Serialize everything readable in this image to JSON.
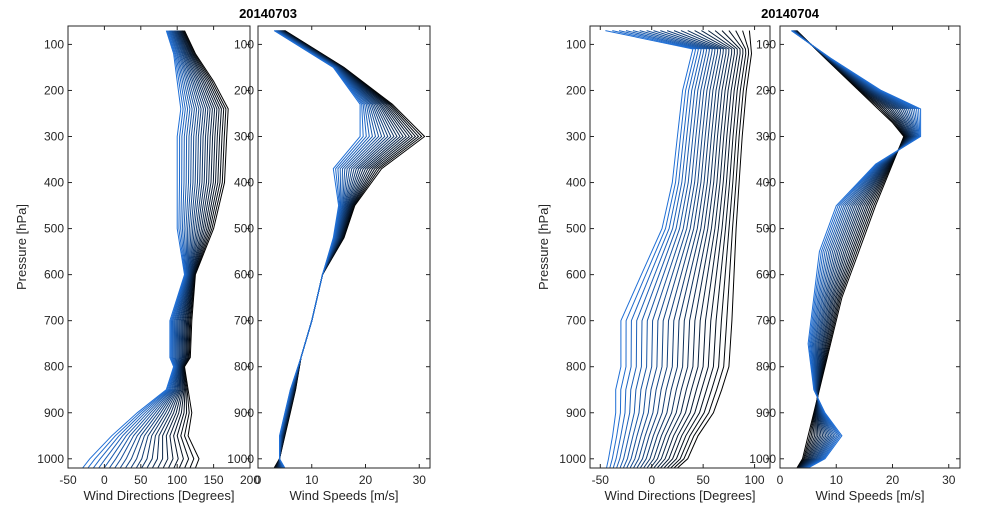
{
  "figure": {
    "titles": [
      "20140703",
      "20140704"
    ]
  },
  "chart_data": [
    {
      "type": "line",
      "title": "20140703",
      "xlabel": "Wind Directions [Degrees]",
      "ylabel": "Pressure [hPa]",
      "xlim": [
        -50,
        200
      ],
      "ylim": [
        1020,
        60
      ],
      "yscale": "linear-reversed",
      "xticks": [
        "-50",
        "0",
        "50",
        "100",
        "150",
        "200"
      ],
      "yticks": [
        "100",
        "200",
        "300",
        "400",
        "500",
        "600",
        "700",
        "800",
        "900",
        "1000"
      ],
      "series_count": 22,
      "series_color_range": [
        "#000000",
        "#1f6fd6"
      ],
      "first_series": {
        "pressure": [
          70,
          120,
          180,
          240,
          300,
          400,
          500,
          600,
          700,
          780,
          800,
          850,
          900,
          950,
          1000,
          1020
        ],
        "values": [
          110,
          125,
          150,
          170,
          168,
          165,
          150,
          125,
          120,
          118,
          110,
          115,
          120,
          115,
          130,
          125
        ]
      },
      "last_series": {
        "pressure": [
          70,
          120,
          180,
          240,
          300,
          400,
          500,
          600,
          700,
          780,
          800,
          850,
          900,
          950,
          1000,
          1020
        ],
        "values": [
          85,
          95,
          100,
          105,
          100,
          100,
          100,
          110,
          90,
          90,
          95,
          85,
          45,
          10,
          -20,
          -30
        ]
      }
    },
    {
      "type": "line",
      "xlabel": "Wind Speeds [m/s]",
      "xlim": [
        0,
        32
      ],
      "ylim": [
        1020,
        60
      ],
      "xticks": [
        "0",
        "10",
        "20",
        "30"
      ],
      "yticks": [
        "100",
        "200",
        "300",
        "400",
        "500",
        "600",
        "700",
        "800",
        "900",
        "1000"
      ],
      "series_count": 22,
      "first_series": {
        "pressure": [
          70,
          150,
          230,
          300,
          370,
          450,
          520,
          600,
          700,
          780,
          850,
          900,
          950,
          1000,
          1020
        ],
        "values": [
          5,
          16,
          25,
          31,
          23,
          18,
          16,
          12,
          10,
          8,
          7,
          6,
          5,
          4,
          3
        ]
      },
      "last_series": {
        "pressure": [
          70,
          150,
          230,
          300,
          370,
          450,
          520,
          600,
          700,
          780,
          850,
          900,
          950,
          1000,
          1020
        ],
        "values": [
          3,
          14,
          19,
          19,
          14,
          15,
          14,
          12,
          10,
          8,
          6,
          5,
          4,
          4,
          5
        ]
      }
    },
    {
      "type": "line",
      "title": "20140704",
      "xlabel": "Wind Directions [Degrees]",
      "ylabel": "Pressure [hPa]",
      "xlim": [
        -60,
        115
      ],
      "ylim": [
        1020,
        60
      ],
      "xticks": [
        "-50",
        "0",
        "50",
        "100"
      ],
      "yticks": [
        "100",
        "200",
        "300",
        "400",
        "500",
        "600",
        "700",
        "800",
        "900",
        "1000"
      ],
      "series_count": 22,
      "first_series": {
        "pressure": [
          70,
          120,
          200,
          300,
          400,
          500,
          600,
          700,
          800,
          850,
          900,
          950,
          1000,
          1020
        ],
        "values": [
          95,
          97,
          92,
          88,
          85,
          82,
          80,
          78,
          75,
          68,
          60,
          45,
          35,
          25
        ]
      },
      "last_series": {
        "pressure": [
          70,
          110,
          200,
          300,
          400,
          500,
          600,
          700,
          800,
          850,
          900,
          950,
          1000,
          1020
        ],
        "values": [
          -45,
          40,
          30,
          25,
          20,
          10,
          -10,
          -30,
          -30,
          -35,
          -35,
          -38,
          -42,
          -44
        ]
      }
    },
    {
      "type": "line",
      "xlabel": "Wind Speeds [m/s]",
      "xlim": [
        0,
        32
      ],
      "ylim": [
        1020,
        60
      ],
      "xticks": [
        "0",
        "10",
        "20",
        "30"
      ],
      "yticks": [
        "100",
        "200",
        "300",
        "400",
        "500",
        "600",
        "700",
        "800",
        "900",
        "1000"
      ],
      "series_count": 22,
      "first_series": {
        "pressure": [
          70,
          130,
          200,
          270,
          300,
          360,
          450,
          550,
          650,
          750,
          850,
          900,
          950,
          1000,
          1020
        ],
        "values": [
          3,
          8,
          14,
          20,
          22,
          20,
          17,
          14,
          11,
          9,
          7,
          6,
          5,
          4,
          3
        ]
      },
      "last_series": {
        "pressure": [
          70,
          130,
          200,
          240,
          300,
          360,
          450,
          550,
          650,
          750,
          850,
          900,
          950,
          1000,
          1020
        ],
        "values": [
          2,
          9,
          18,
          25,
          25,
          17,
          10,
          7,
          6,
          5,
          6,
          8,
          11,
          8,
          5
        ]
      }
    }
  ]
}
